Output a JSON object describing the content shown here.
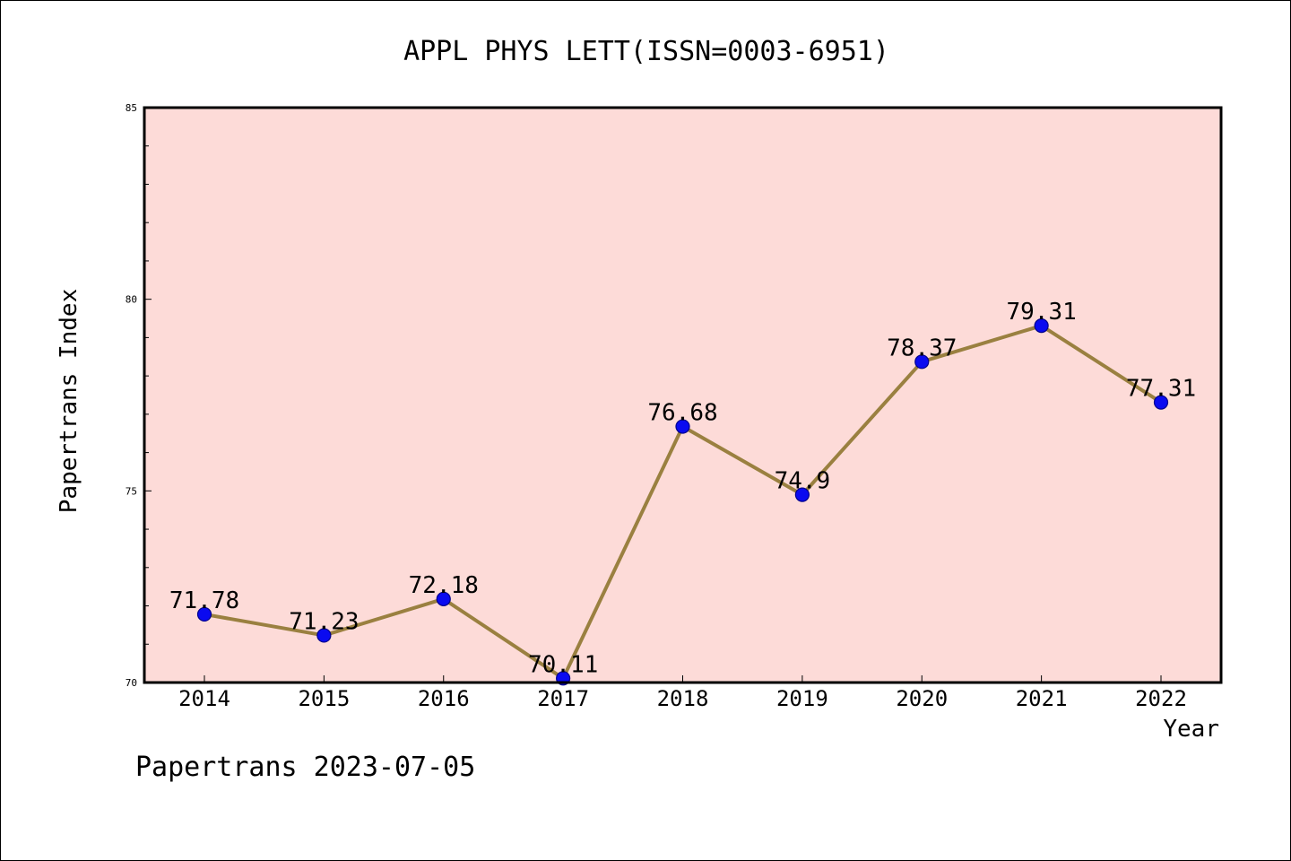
{
  "chart_data": {
    "type": "line",
    "title": "APPL PHYS LETT(ISSN=0003-6951)",
    "xlabel": "Year",
    "ylabel": "Papertrans Index",
    "categories": [
      "2014",
      "2015",
      "2016",
      "2017",
      "2018",
      "2019",
      "2020",
      "2021",
      "2022"
    ],
    "series": [
      {
        "values": [
          71.78,
          71.23,
          72.18,
          70.11,
          76.68,
          74.9,
          78.37,
          79.31,
          77.31
        ],
        "data_labels": [
          "71.78",
          "71.23",
          "72.18",
          "70.11",
          "76.68",
          "74.9",
          "78.37",
          "79.31",
          "77.31"
        ]
      }
    ],
    "ylim": [
      70,
      85
    ],
    "y_major_ticks": [
      70,
      75,
      80,
      85
    ],
    "y_minor_step": 1,
    "grid": false,
    "legend": "none",
    "colors": {
      "plot_background": "#fddbd8",
      "line": "#9a8040",
      "marker": "#0a0af0",
      "marker_edge": "#00008b",
      "axis": "#000000"
    }
  },
  "footer": "Papertrans 2023-07-05"
}
